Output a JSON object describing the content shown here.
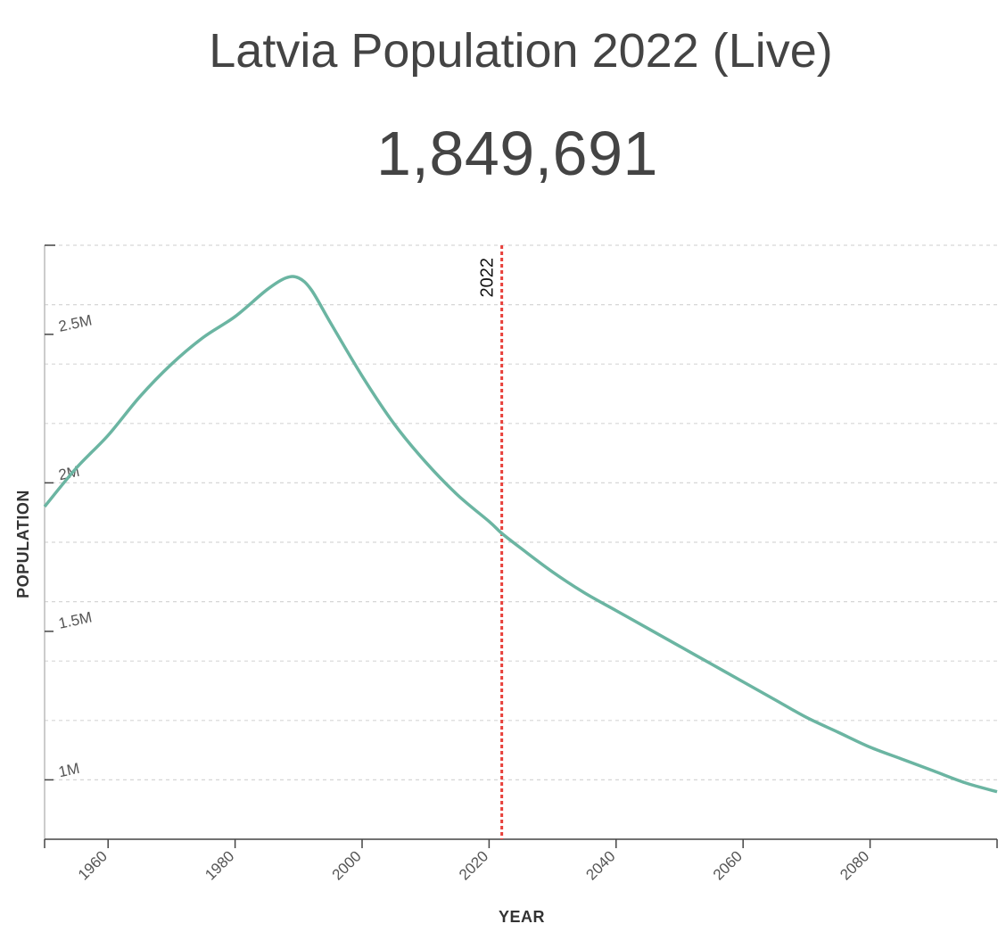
{
  "header": {
    "title": "Latvia Population 2022 (Live)",
    "counter": "1,849,691"
  },
  "chart_data": {
    "type": "line",
    "xlabel": "YEAR",
    "ylabel": "POPULATION",
    "xlim": [
      1950,
      2100
    ],
    "ylim": [
      800000,
      2800000
    ],
    "x_ticks": [
      1960,
      1980,
      2000,
      2020,
      2040,
      2060,
      2080
    ],
    "x_tick_labels": [
      "1960",
      "1980",
      "2000",
      "2020",
      "2040",
      "2060",
      "2080"
    ],
    "y_ticks": [
      1000000,
      1500000,
      2000000,
      2500000
    ],
    "y_tick_labels": [
      "1M",
      "1.5M",
      "2M",
      "2.5M"
    ],
    "grid": true,
    "line_color": "#6bb5a2",
    "marker": {
      "year": 2022,
      "label": "2022",
      "color": "#e8403a"
    },
    "series": [
      {
        "x": [
          1950,
          1955,
          1960,
          1965,
          1970,
          1975,
          1980,
          1985,
          1988,
          1990,
          1992,
          1995,
          2000,
          2005,
          2010,
          2015,
          2020,
          2022,
          2025,
          2030,
          2035,
          2040,
          2045,
          2050,
          2055,
          2060,
          2065,
          2070,
          2075,
          2080,
          2085,
          2090,
          2095,
          2100
        ],
        "y": [
          1920000,
          2050000,
          2160000,
          2290000,
          2400000,
          2490000,
          2560000,
          2650000,
          2690000,
          2690000,
          2650000,
          2540000,
          2360000,
          2200000,
          2070000,
          1960000,
          1870000,
          1830000,
          1780000,
          1700000,
          1630000,
          1570000,
          1510000,
          1450000,
          1390000,
          1330000,
          1270000,
          1210000,
          1160000,
          1110000,
          1070000,
          1030000,
          990000,
          960000
        ]
      }
    ]
  }
}
